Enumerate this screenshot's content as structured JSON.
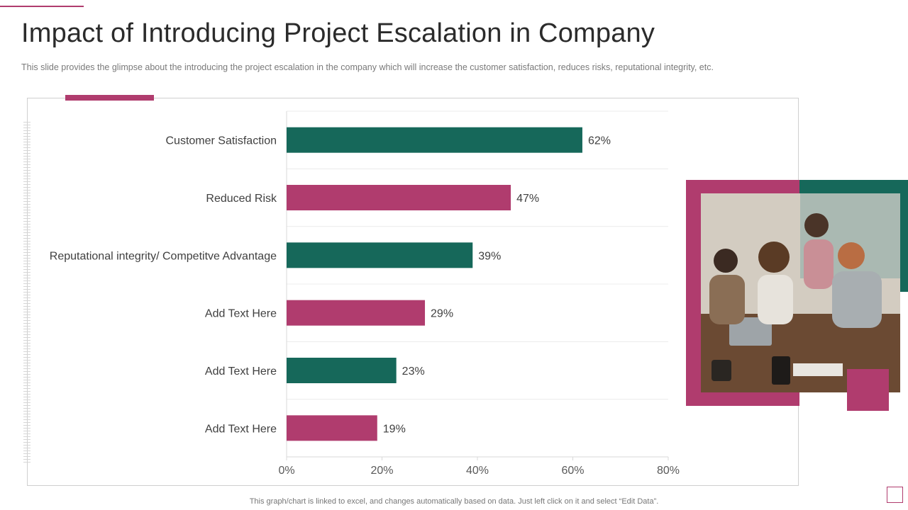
{
  "title": "Impact of Introducing Project Escalation in Company",
  "subtitle": "This slide provides  the glimpse about the introducing the project escalation in the company which will increase the customer satisfaction, reduces risks, reputational integrity, etc.",
  "footnote": "This graph/chart is linked to excel,  and changes automatically based on data. Just left click on it and select “Edit Data”.",
  "colors": {
    "accent": "#b03c6e",
    "green": "#16685a"
  },
  "chart_data": {
    "type": "bar",
    "orientation": "horizontal",
    "title": "",
    "xlabel": "",
    "ylabel": "",
    "categories": [
      "Customer Satisfaction",
      "Reduced Risk",
      "Reputational integrity/ Competitve Advantage",
      "Add Text Here",
      "Add Text Here",
      "Add Text Here"
    ],
    "values": [
      62,
      47,
      39,
      29,
      23,
      19
    ],
    "data_labels": [
      "62%",
      "47%",
      "39%",
      "29%",
      "23%",
      "19%"
    ],
    "bar_colors": [
      "#16685a",
      "#b03c6e",
      "#16685a",
      "#b03c6e",
      "#16685a",
      "#b03c6e"
    ],
    "xlim": [
      0,
      80
    ],
    "x_ticks": [
      0,
      20,
      40,
      60,
      80
    ],
    "x_tick_labels": [
      "0%",
      "20%",
      "40%",
      "60%",
      "80%"
    ],
    "grid": true
  }
}
